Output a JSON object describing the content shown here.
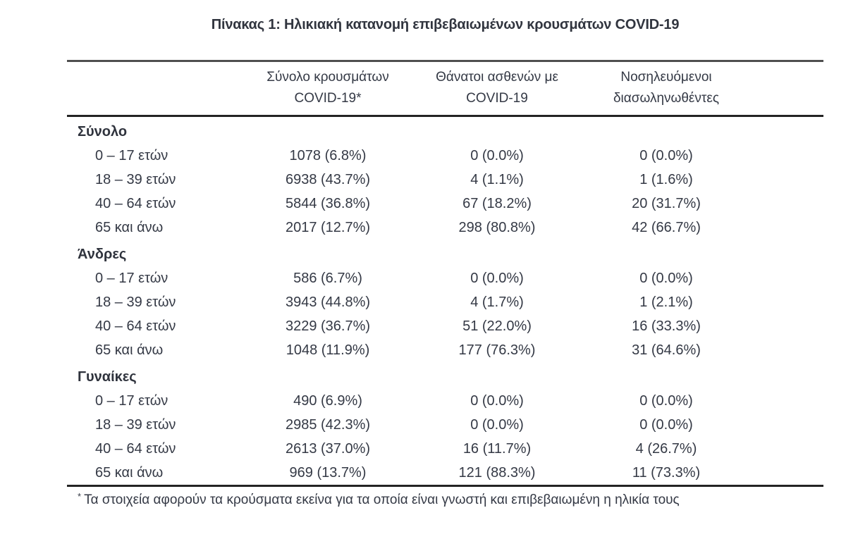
{
  "title": "Πίνακας 1: Ηλικιακή κατανομή επιβεβαιωμένων κρουσμάτων COVID-19",
  "colors": {
    "text": "#343945",
    "rule_top": "#4f4f4f",
    "rule_heavy": "#232323",
    "background": "#ffffff"
  },
  "table": {
    "headers": [
      {
        "line1": "Σύνολο κρουσμάτων",
        "line2": "COVID-19*"
      },
      {
        "line1": "Θάνατοι ασθενών με",
        "line2": "COVID-19"
      },
      {
        "line1": "Νοσηλευόμενοι",
        "line2": "διασωληνωθέντες"
      }
    ],
    "sections": [
      {
        "label": "Σύνολο",
        "rows": [
          {
            "label": "0 – 17 ετών",
            "cases": "1078 (6.8%)",
            "deaths": "0 (0.0%)",
            "intubated": "0 (0.0%)"
          },
          {
            "label": "18 – 39 ετών",
            "cases": "6938 (43.7%)",
            "deaths": "4 (1.1%)",
            "intubated": "1 (1.6%)"
          },
          {
            "label": "40 – 64 ετών",
            "cases": "5844 (36.8%)",
            "deaths": "67 (18.2%)",
            "intubated": "20 (31.7%)"
          },
          {
            "label": "65 και άνω",
            "cases": "2017 (12.7%)",
            "deaths": "298 (80.8%)",
            "intubated": "42 (66.7%)"
          }
        ]
      },
      {
        "label": "Άνδρες",
        "rows": [
          {
            "label": "0 – 17 ετών",
            "cases": "586 (6.7%)",
            "deaths": "0 (0.0%)",
            "intubated": "0 (0.0%)"
          },
          {
            "label": "18 – 39 ετών",
            "cases": "3943 (44.8%)",
            "deaths": "4 (1.7%)",
            "intubated": "1 (2.1%)"
          },
          {
            "label": "40 – 64 ετών",
            "cases": "3229 (36.7%)",
            "deaths": "51 (22.0%)",
            "intubated": "16 (33.3%)"
          },
          {
            "label": "65 και άνω",
            "cases": "1048 (11.9%)",
            "deaths": "177 (76.3%)",
            "intubated": "31 (64.6%)"
          }
        ]
      },
      {
        "label": "Γυναίκες",
        "rows": [
          {
            "label": "0 – 17 ετών",
            "cases": "490 (6.9%)",
            "deaths": "0 (0.0%)",
            "intubated": "0 (0.0%)"
          },
          {
            "label": "18 – 39 ετών",
            "cases": "2985 (42.3%)",
            "deaths": "0 (0.0%)",
            "intubated": "0 (0.0%)"
          },
          {
            "label": "40 – 64 ετών",
            "cases": "2613 (37.0%)",
            "deaths": "16 (11.7%)",
            "intubated": "4 (26.7%)"
          },
          {
            "label": "65 και άνω",
            "cases": "969 (13.7%)",
            "deaths": "121 (88.3%)",
            "intubated": "11 (73.3%)"
          }
        ]
      }
    ],
    "footnote": {
      "marker": "*",
      "text": "Τα στοιχεία αφορούν τα κρούσματα εκείνα για τα οποία είναι γνωστή και επιβεβαιωμένη η ηλικία τους"
    }
  }
}
